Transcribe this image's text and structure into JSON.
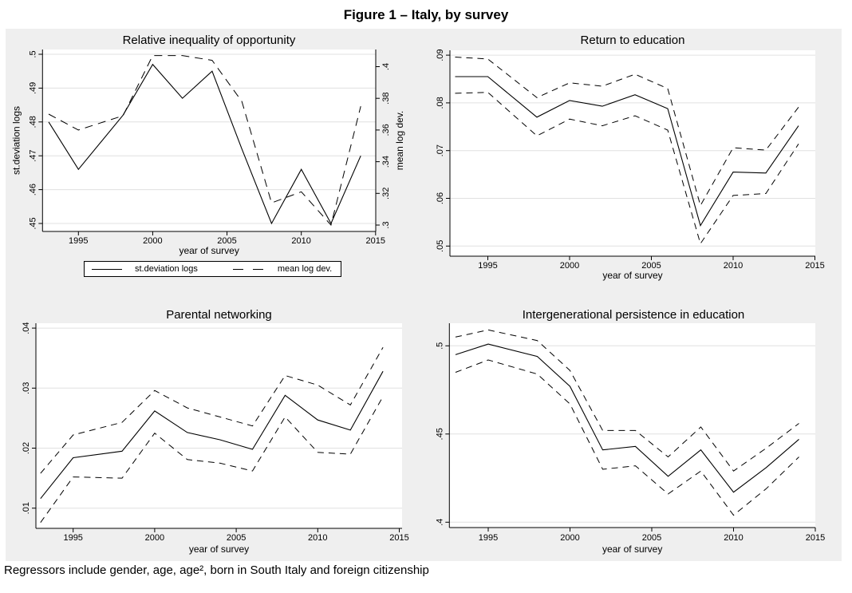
{
  "figure": {
    "title": "Figure 1 – Italy, by survey",
    "footnote": "Regressors include gender, age, age², born in South Italy and foreign citizenship"
  },
  "colors": {
    "page_bg": "#ffffff",
    "figure_bg": "#efefef",
    "plot_bg": "#ffffff",
    "grid": "#e0e0e0",
    "line": "#000000"
  },
  "chart_data": [
    {
      "type": "line",
      "title": "Relative inequality of opportunity",
      "xlabel": "year of survey",
      "grid": true,
      "x": [
        1993,
        1995,
        1998,
        2000,
        2002,
        2004,
        2006,
        2008,
        2010,
        2012,
        2014
      ],
      "x_ticks": {
        "values": [
          1995,
          2000,
          2005,
          2010,
          2015
        ],
        "labels": [
          "1995",
          "2000",
          "2005",
          "2010",
          "2015"
        ]
      },
      "xlim": [
        1993,
        2015
      ],
      "left_axis": {
        "label": "st.deviation logs",
        "range": [
          0.45,
          0.5
        ],
        "ticks": {
          "values": [
            0.45,
            0.46,
            0.47,
            0.48,
            0.49,
            0.5
          ],
          "labels": [
            ".45",
            ".46",
            ".47",
            ".48",
            ".49",
            ".5"
          ]
        }
      },
      "right_axis": {
        "label": "mean log dev.",
        "range": [
          0.3,
          0.4
        ],
        "ticks": {
          "values": [
            0.3,
            0.32,
            0.34,
            0.36,
            0.38,
            0.4
          ],
          "labels": [
            ".3",
            ".32",
            ".34",
            ".36",
            ".38",
            ".4"
          ]
        }
      },
      "series": [
        {
          "name": "st.deviation logs",
          "axis": "left",
          "style": "solid",
          "values": [
            0.48,
            0.466,
            0.482,
            0.497,
            0.487,
            0.495,
            0.472,
            0.45,
            0.466,
            0.45,
            0.47
          ]
        },
        {
          "name": "mean log dev.",
          "axis": "right",
          "style": "dashed",
          "values": [
            0.37,
            0.36,
            0.369,
            0.407,
            0.407,
            0.404,
            0.378,
            0.314,
            0.321,
            0.3,
            0.375
          ]
        }
      ],
      "legend": {
        "position": "bottom",
        "items": [
          {
            "label": "st.deviation logs",
            "style": "solid"
          },
          {
            "label": "mean log dev.",
            "style": "dashed"
          }
        ]
      }
    },
    {
      "type": "line",
      "title": "Return to education",
      "xlabel": "year of survey",
      "grid": true,
      "x": [
        1993,
        1995,
        1998,
        2000,
        2002,
        2004,
        2006,
        2008,
        2010,
        2012,
        2014
      ],
      "x_ticks": {
        "values": [
          1995,
          2000,
          2005,
          2010,
          2015
        ],
        "labels": [
          "1995",
          "2000",
          "2005",
          "2010",
          "2015"
        ]
      },
      "xlim": [
        1993,
        2015
      ],
      "left_axis": {
        "label": null,
        "range": [
          0.05,
          0.09
        ],
        "ticks": {
          "values": [
            0.05,
            0.06,
            0.07,
            0.08,
            0.09
          ],
          "labels": [
            ".05",
            ".06",
            ".07",
            ".08",
            ".09"
          ]
        }
      },
      "series": [
        {
          "name": "estimate",
          "axis": "left",
          "style": "solid",
          "values": [
            0.0855,
            0.0855,
            0.077,
            0.0805,
            0.0793,
            0.0817,
            0.0788,
            0.0543,
            0.0655,
            0.0653,
            0.0752
          ]
        },
        {
          "name": "upper band",
          "axis": "left",
          "style": "dashed",
          "values": [
            0.0896,
            0.0892,
            0.0811,
            0.0842,
            0.0835,
            0.086,
            0.083,
            0.0585,
            0.0706,
            0.0701,
            0.0791
          ]
        },
        {
          "name": "lower band",
          "axis": "left",
          "style": "dashed",
          "values": [
            0.082,
            0.0822,
            0.0731,
            0.0766,
            0.0752,
            0.0773,
            0.0743,
            0.0505,
            0.0606,
            0.061,
            0.0714
          ]
        }
      ]
    },
    {
      "type": "line",
      "title": "Parental networking",
      "xlabel": "year of survey",
      "grid": true,
      "x": [
        1993,
        1995,
        1998,
        2000,
        2002,
        2004,
        2006,
        2008,
        2010,
        2012,
        2014
      ],
      "x_ticks": {
        "values": [
          1995,
          2000,
          2005,
          2010,
          2015
        ],
        "labels": [
          "1995",
          "2000",
          "2005",
          "2010",
          "2015"
        ]
      },
      "xlim": [
        1993,
        2015
      ],
      "left_axis": {
        "label": null,
        "range": [
          0.01,
          0.04
        ],
        "ticks": {
          "values": [
            0.01,
            0.02,
            0.03,
            0.04
          ],
          "labels": [
            ".01",
            ".02",
            ".03",
            ".04"
          ]
        }
      },
      "series": [
        {
          "name": "estimate",
          "axis": "left",
          "style": "solid",
          "values": [
            0.0116,
            0.0184,
            0.0195,
            0.0262,
            0.0226,
            0.0214,
            0.0198,
            0.0288,
            0.0247,
            0.023,
            0.0328
          ]
        },
        {
          "name": "upper band",
          "axis": "left",
          "style": "dashed",
          "values": [
            0.0158,
            0.0222,
            0.0243,
            0.0296,
            0.0267,
            0.0252,
            0.0237,
            0.0321,
            0.0305,
            0.0272,
            0.0368
          ]
        },
        {
          "name": "lower band",
          "axis": "left",
          "style": "dashed",
          "values": [
            0.0076,
            0.0152,
            0.015,
            0.0225,
            0.0181,
            0.0175,
            0.0162,
            0.0252,
            0.0193,
            0.019,
            0.0286
          ]
        }
      ]
    },
    {
      "type": "line",
      "title": "Intergenerational persistence in education",
      "xlabel": "year of survey",
      "grid": true,
      "x": [
        1993,
        1995,
        1998,
        2000,
        2002,
        2004,
        2006,
        2008,
        2010,
        2012,
        2014
      ],
      "x_ticks": {
        "values": [
          1995,
          2000,
          2005,
          2010,
          2015
        ],
        "labels": [
          "1995",
          "2000",
          "2005",
          "2010",
          "2015"
        ]
      },
      "xlim": [
        1993,
        2015
      ],
      "left_axis": {
        "label": null,
        "range": [
          0.4,
          0.5
        ],
        "ticks": {
          "values": [
            0.4,
            0.45,
            0.5
          ],
          "labels": [
            ".4",
            ".45",
            ".5"
          ]
        }
      },
      "series": [
        {
          "name": "estimate",
          "axis": "left",
          "style": "solid",
          "values": [
            0.495,
            0.501,
            0.494,
            0.477,
            0.441,
            0.443,
            0.426,
            0.441,
            0.417,
            0.431,
            0.447
          ]
        },
        {
          "name": "upper band",
          "axis": "left",
          "style": "dashed",
          "values": [
            0.505,
            0.509,
            0.503,
            0.486,
            0.452,
            0.452,
            0.437,
            0.454,
            0.429,
            0.442,
            0.456
          ]
        },
        {
          "name": "lower band",
          "axis": "left",
          "style": "dashed",
          "values": [
            0.485,
            0.492,
            0.484,
            0.467,
            0.43,
            0.432,
            0.416,
            0.429,
            0.404,
            0.419,
            0.437
          ]
        }
      ]
    }
  ]
}
